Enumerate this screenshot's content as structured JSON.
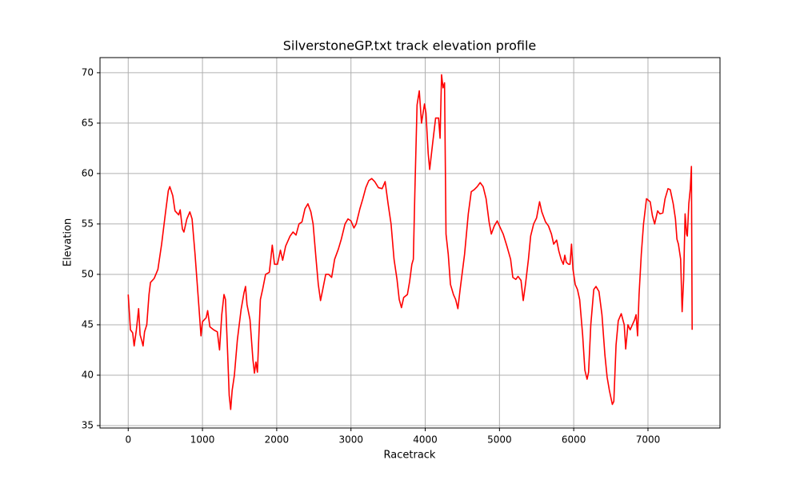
{
  "chart_data": {
    "type": "line",
    "title": "SilverstoneGP.txt track elevation profile",
    "xlabel": "Racetrack",
    "ylabel": "Elevation",
    "color": "red",
    "grid": true,
    "xlim": [
      -380,
      7970
    ],
    "ylim": [
      34.76,
      71.5
    ],
    "xticks": [
      0,
      1000,
      2000,
      3000,
      4000,
      5000,
      6000,
      7000
    ],
    "yticks": [
      35,
      40,
      45,
      50,
      55,
      60,
      65,
      70
    ],
    "x": [
      0,
      30,
      60,
      80,
      110,
      140,
      160,
      180,
      200,
      220,
      250,
      280,
      300,
      350,
      400,
      450,
      500,
      540,
      560,
      600,
      630,
      680,
      700,
      730,
      750,
      790,
      830,
      860,
      900,
      950,
      980,
      1000,
      1050,
      1070,
      1100,
      1150,
      1200,
      1230,
      1260,
      1290,
      1310,
      1340,
      1360,
      1380,
      1400,
      1430,
      1470,
      1520,
      1560,
      1580,
      1600,
      1640,
      1680,
      1700,
      1720,
      1740,
      1760,
      1780,
      1810,
      1850,
      1900,
      1920,
      1940,
      1970,
      2010,
      2050,
      2080,
      2120,
      2180,
      2220,
      2260,
      2300,
      2340,
      2380,
      2420,
      2460,
      2490,
      2530,
      2560,
      2590,
      2620,
      2660,
      2700,
      2740,
      2780,
      2830,
      2870,
      2920,
      2960,
      3000,
      3040,
      3070,
      3120,
      3160,
      3200,
      3240,
      3280,
      3320,
      3370,
      3420,
      3460,
      3500,
      3540,
      3580,
      3620,
      3650,
      3680,
      3710,
      3760,
      3790,
      3820,
      3840,
      3860,
      3890,
      3920,
      3950,
      3990,
      4010,
      4040,
      4060,
      4100,
      4140,
      4180,
      4200,
      4220,
      4240,
      4260,
      4280,
      4310,
      4340,
      4380,
      4410,
      4440,
      4470,
      4530,
      4580,
      4620,
      4660,
      4700,
      4740,
      4780,
      4820,
      4860,
      4890,
      4930,
      4970,
      5000,
      5050,
      5100,
      5150,
      5180,
      5220,
      5250,
      5290,
      5320,
      5350,
      5390,
      5420,
      5460,
      5500,
      5540,
      5570,
      5620,
      5660,
      5700,
      5730,
      5770,
      5800,
      5830,
      5860,
      5880,
      5900,
      5930,
      5950,
      5970,
      5990,
      6020,
      6050,
      6080,
      6120,
      6150,
      6180,
      6200,
      6230,
      6270,
      6300,
      6340,
      6380,
      6420,
      6450,
      6480,
      6520,
      6540,
      6570,
      6600,
      6640,
      6680,
      6700,
      6730,
      6760,
      6790,
      6820,
      6840,
      6860,
      6880,
      6910,
      6940,
      6980,
      7030,
      7060,
      7090,
      7130,
      7160,
      7200,
      7230,
      7270,
      7300,
      7340,
      7370,
      7390,
      7410,
      7440,
      7460,
      7480,
      7500,
      7520,
      7530,
      7550,
      7570,
      7585,
      7595
    ],
    "values": [
      48,
      44.5,
      44.2,
      42.9,
      44.5,
      46.6,
      44,
      43.5,
      42.9,
      44.3,
      45,
      48,
      49.2,
      49.6,
      50.5,
      53,
      56,
      58.3,
      58.7,
      57.8,
      56.3,
      55.9,
      56.4,
      54.5,
      54.2,
      55.5,
      56.2,
      55.5,
      52,
      47,
      43.9,
      45.3,
      45.7,
      46.4,
      44.8,
      44.5,
      44.3,
      42.5,
      46,
      48,
      47.5,
      42,
      38,
      36.6,
      38.5,
      40,
      43.5,
      46.5,
      48.2,
      48.8,
      47,
      45.5,
      41.5,
      40.2,
      41.3,
      40.3,
      44,
      47.5,
      48.5,
      50,
      50.2,
      51.5,
      52.9,
      51,
      51,
      52.4,
      51.4,
      52.8,
      53.8,
      54.2,
      53.9,
      55,
      55.2,
      56.5,
      57,
      56.2,
      55,
      51.5,
      49,
      47.4,
      48.5,
      50,
      50,
      49.7,
      51.5,
      52.5,
      53.5,
      55,
      55.5,
      55.3,
      54.6,
      55,
      56.5,
      57.5,
      58.6,
      59.3,
      59.5,
      59.2,
      58.6,
      58.5,
      59.2,
      57,
      55,
      51.5,
      49.5,
      47.5,
      46.7,
      47.7,
      48,
      49.3,
      51,
      51.5,
      58,
      66.8,
      68.2,
      65,
      66.9,
      66,
      62,
      60.4,
      63,
      65.5,
      65.5,
      63.5,
      69.8,
      68.5,
      69,
      54,
      52,
      49,
      48,
      47.5,
      46.6,
      48.5,
      52,
      56,
      58.2,
      58.4,
      58.7,
      59.1,
      58.7,
      57.5,
      55.2,
      54,
      54.8,
      55.3,
      54.8,
      54,
      52.8,
      51.5,
      49.7,
      49.5,
      49.8,
      49.4,
      47.4,
      49,
      51.5,
      53.8,
      55,
      55.6,
      57.2,
      56.2,
      55.2,
      54.8,
      54,
      53,
      53.4,
      52.3,
      51.5,
      51,
      51.9,
      51.2,
      51,
      51,
      53,
      50.5,
      49,
      48.5,
      47.5,
      44,
      40.5,
      39.6,
      40.3,
      45,
      48.5,
      48.8,
      48.3,
      46,
      42,
      39.8,
      38.5,
      37.1,
      37.4,
      43,
      45.4,
      46.1,
      45,
      42.6,
      45,
      44.5,
      45,
      45.5,
      46,
      43.9,
      48,
      52,
      55,
      57.5,
      57.2,
      55.8,
      55,
      56.3,
      56,
      56.1,
      57.5,
      58.5,
      58.4,
      57,
      55.5,
      53.5,
      53,
      51.5,
      46.3,
      49.5,
      56,
      54,
      53.8,
      57,
      58.5,
      60.7,
      44.5
    ]
  }
}
